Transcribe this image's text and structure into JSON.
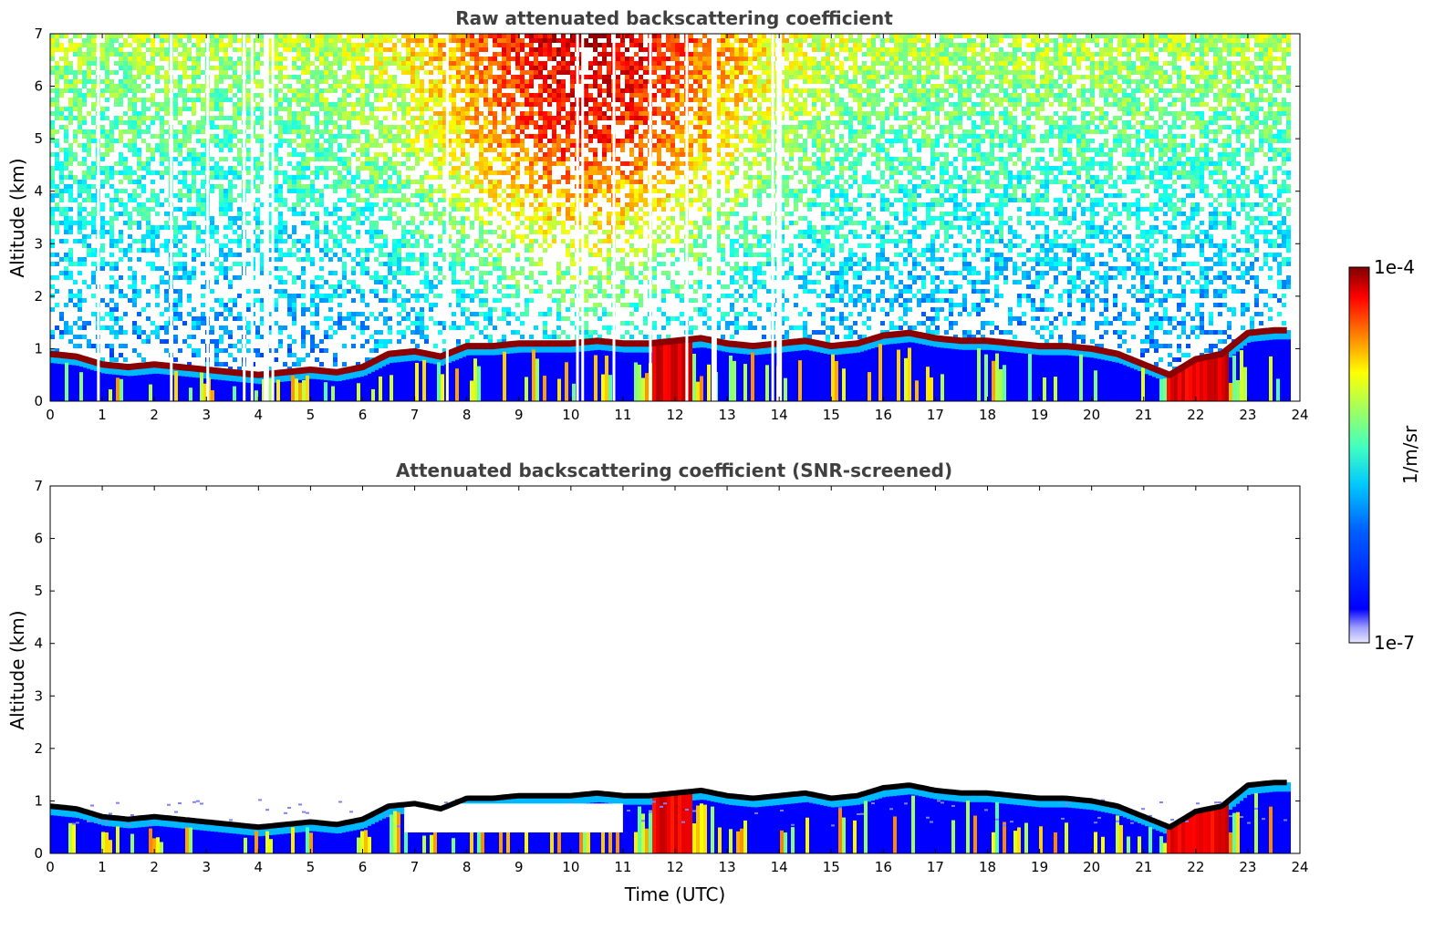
{
  "chart_data": [
    {
      "type": "heatmap",
      "title": "Raw attenuated backscattering coefficient",
      "xlabel": "",
      "ylabel": "Altitude (km)",
      "xlim": [
        0,
        24
      ],
      "ylim": [
        0,
        7
      ],
      "xticks": [
        "0",
        "1",
        "2",
        "3",
        "4",
        "5",
        "6",
        "7",
        "8",
        "9",
        "10",
        "11",
        "12",
        "13",
        "14",
        "15",
        "16",
        "17",
        "18",
        "19",
        "20",
        "21",
        "22",
        "23",
        "24"
      ],
      "yticks": [
        "0",
        "1",
        "2",
        "3",
        "4",
        "5",
        "6",
        "7"
      ],
      "noise_background": "high-altitude noise filling 0-7 km, strongest (red/orange) around 7-14 UTC above 4 km",
      "gaps_utc": [
        0.9,
        2.3,
        3.0,
        3.7,
        3.85,
        4.1,
        4.15,
        4.25,
        7.6,
        10.1,
        10.2,
        10.8,
        11.5,
        12.2,
        12.7,
        12.75,
        13.85,
        13.95,
        14.0
      ]
    },
    {
      "type": "heatmap",
      "title": "Attenuated backscattering coefficient (SNR-screened)",
      "xlabel": "Time (UTC)",
      "ylabel": "Altitude (km)",
      "xlim": [
        0,
        24
      ],
      "ylim": [
        0,
        7
      ],
      "xticks": [
        "0",
        "1",
        "2",
        "3",
        "4",
        "5",
        "6",
        "7",
        "8",
        "9",
        "10",
        "11",
        "12",
        "13",
        "14",
        "15",
        "16",
        "17",
        "18",
        "19",
        "20",
        "21",
        "22",
        "23",
        "24"
      ],
      "yticks": [
        "0",
        "1",
        "2",
        "3",
        "4",
        "5",
        "6",
        "7"
      ],
      "screened_out_region": {
        "from_utc": 6.8,
        "to_utc": 11.0,
        "altitude_km": [
          0.4,
          1.0
        ]
      }
    }
  ],
  "boundary_layer_top_km": {
    "time_utc": [
      0,
      0.5,
      1,
      1.5,
      2,
      2.5,
      3,
      3.5,
      4,
      4.5,
      5,
      5.5,
      6,
      6.5,
      7,
      7.5,
      8,
      8.5,
      9,
      9.5,
      10,
      10.5,
      11,
      11.5,
      12,
      12.5,
      13,
      13.5,
      14,
      14.5,
      15,
      15.5,
      16,
      16.5,
      17,
      17.5,
      18,
      18.5,
      19,
      19.5,
      20,
      20.5,
      21,
      21.5,
      22,
      22.5,
      23,
      23.5,
      23.8
    ],
    "altitude_km": [
      0.9,
      0.85,
      0.7,
      0.65,
      0.7,
      0.65,
      0.6,
      0.55,
      0.5,
      0.55,
      0.6,
      0.55,
      0.65,
      0.9,
      0.95,
      0.85,
      1.05,
      1.05,
      1.1,
      1.1,
      1.1,
      1.15,
      1.1,
      1.1,
      1.15,
      1.2,
      1.1,
      1.05,
      1.1,
      1.15,
      1.05,
      1.1,
      1.25,
      1.3,
      1.2,
      1.15,
      1.15,
      1.1,
      1.05,
      1.05,
      1.0,
      0.9,
      0.7,
      0.5,
      0.8,
      0.9,
      1.3,
      1.35,
      1.35
    ]
  },
  "colorbar": {
    "label": "1/m/sr",
    "min_label": "1e-7",
    "max_label": "1e-4",
    "scale": "log",
    "colormap": "jet"
  },
  "colors": {
    "title": "#404040",
    "aerosol_low": "#0000ff",
    "boundary_top": "#8b0000",
    "background": "#ffffff"
  }
}
